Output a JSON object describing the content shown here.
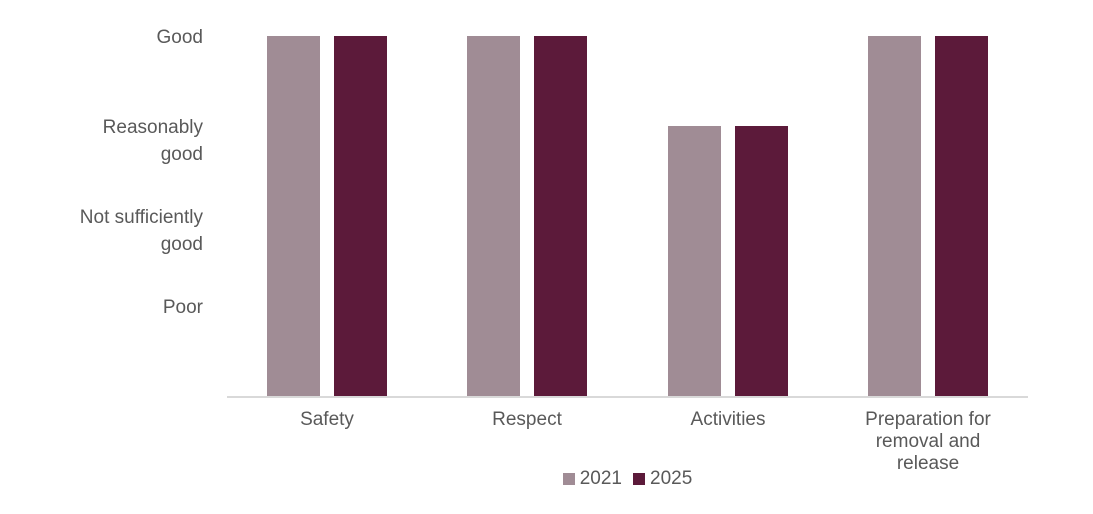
{
  "chart_data": {
    "type": "bar",
    "title": "",
    "categories": [
      "Safety",
      "Respect",
      "Activities",
      "Preparation for removal and release"
    ],
    "series": [
      {
        "name": "2021",
        "color": "#A08C95",
        "values": [
          4,
          4,
          3,
          4
        ]
      },
      {
        "name": "2025",
        "color": "#5C1A3A",
        "values": [
          4,
          4,
          3,
          4
        ]
      }
    ],
    "value_scale_labels": [
      {
        "value": 4,
        "label": "Good"
      },
      {
        "value": 3,
        "label": "Reasonably good"
      },
      {
        "value": 2,
        "label": "Not sufficiently good"
      },
      {
        "value": 1,
        "label": "Poor"
      }
    ],
    "ylim": [
      0,
      4
    ],
    "grid": false,
    "legend_position": "bottom",
    "axis_color": "#D9D9D9",
    "text_color": "#595959",
    "background_color": "#FFFFFF"
  }
}
